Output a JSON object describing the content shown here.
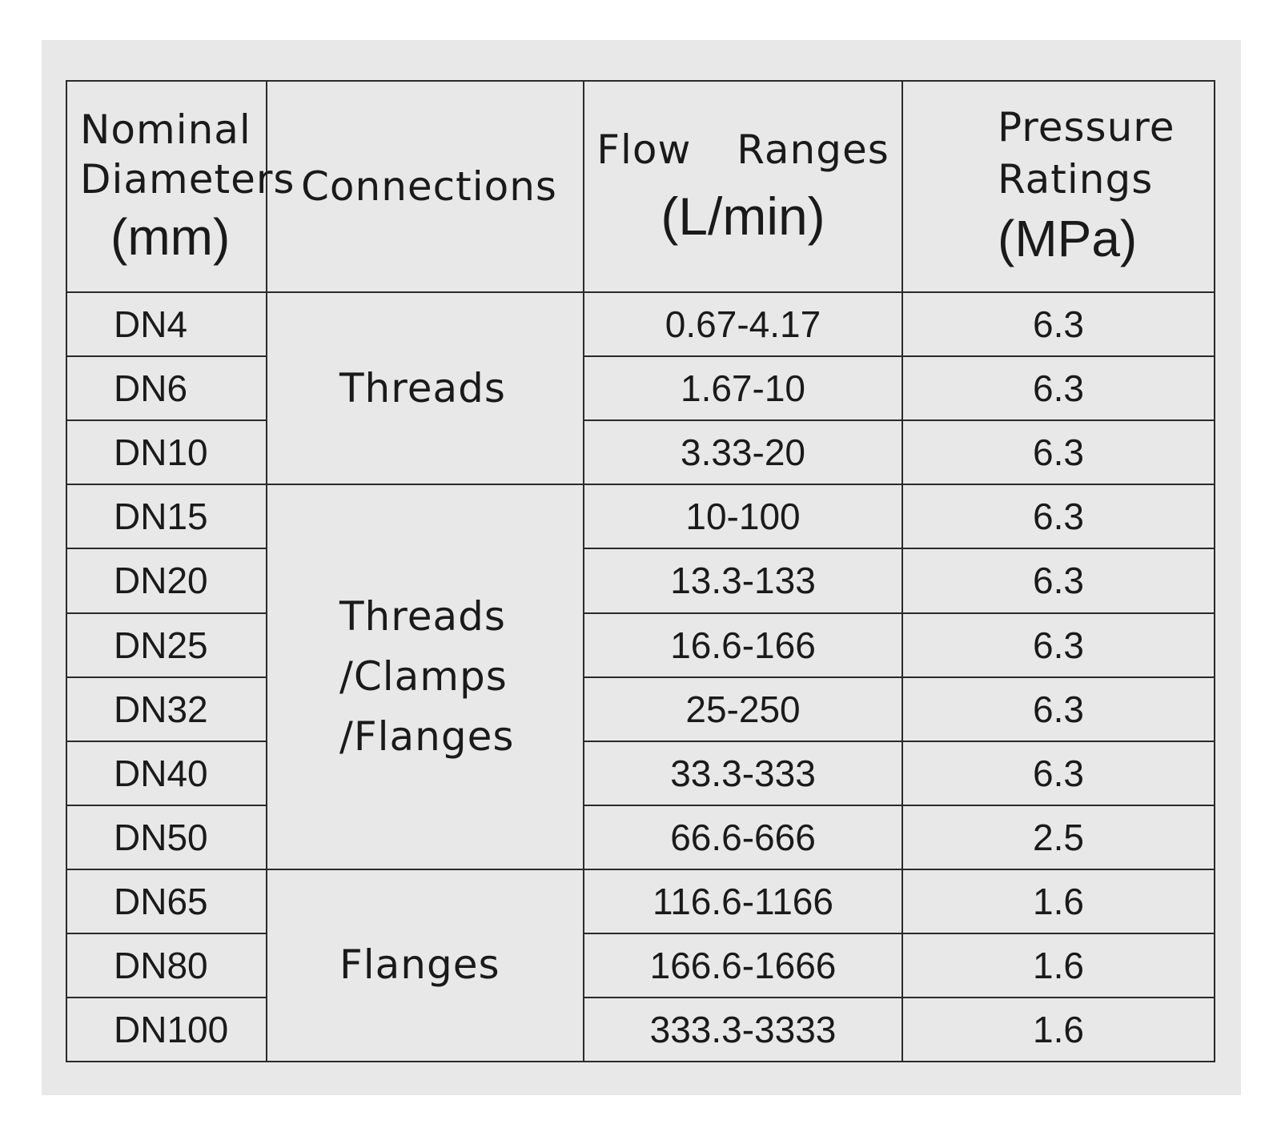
{
  "table": {
    "header": {
      "nominal_word1": "Nominal",
      "nominal_word2": "Diameters",
      "nominal_unit": "(mm)",
      "connections": "Connections",
      "flow_word": "Flow Ranges",
      "flow_unit": "(L/min)",
      "pressure_word1": "Pressure",
      "pressure_word2": "Ratings",
      "pressure_unit": "(MPa)"
    },
    "groups": [
      {
        "connection_lines": [
          "Threads"
        ]
      },
      {
        "connection_lines": [
          "Threads",
          "/Clamps",
          "/Flanges"
        ]
      },
      {
        "connection_lines": [
          "Flanges"
        ]
      }
    ],
    "rows": [
      {
        "diameter": "DN4",
        "flow": "0.67-4.17",
        "pressure": "6.3"
      },
      {
        "diameter": "DN6",
        "flow": "1.67-10",
        "pressure": "6.3"
      },
      {
        "diameter": "DN10",
        "flow": "3.33-20",
        "pressure": "6.3"
      },
      {
        "diameter": "DN15",
        "flow": "10-100",
        "pressure": "6.3"
      },
      {
        "diameter": "DN20",
        "flow": "13.3-133",
        "pressure": "6.3"
      },
      {
        "diameter": "DN25",
        "flow": "16.6-166",
        "pressure": "6.3"
      },
      {
        "diameter": "DN32",
        "flow": "25-250",
        "pressure": "6.3"
      },
      {
        "diameter": "DN40",
        "flow": "33.3-333",
        "pressure": "6.3"
      },
      {
        "diameter": "DN50",
        "flow": "66.6-666",
        "pressure": "2.5"
      },
      {
        "diameter": "DN65",
        "flow": "116.6-1166",
        "pressure": "1.6"
      },
      {
        "diameter": "DN80",
        "flow": "166.6-1666",
        "pressure": "1.6"
      },
      {
        "diameter": "DN100",
        "flow": "333.3-3333",
        "pressure": "1.6"
      }
    ]
  }
}
